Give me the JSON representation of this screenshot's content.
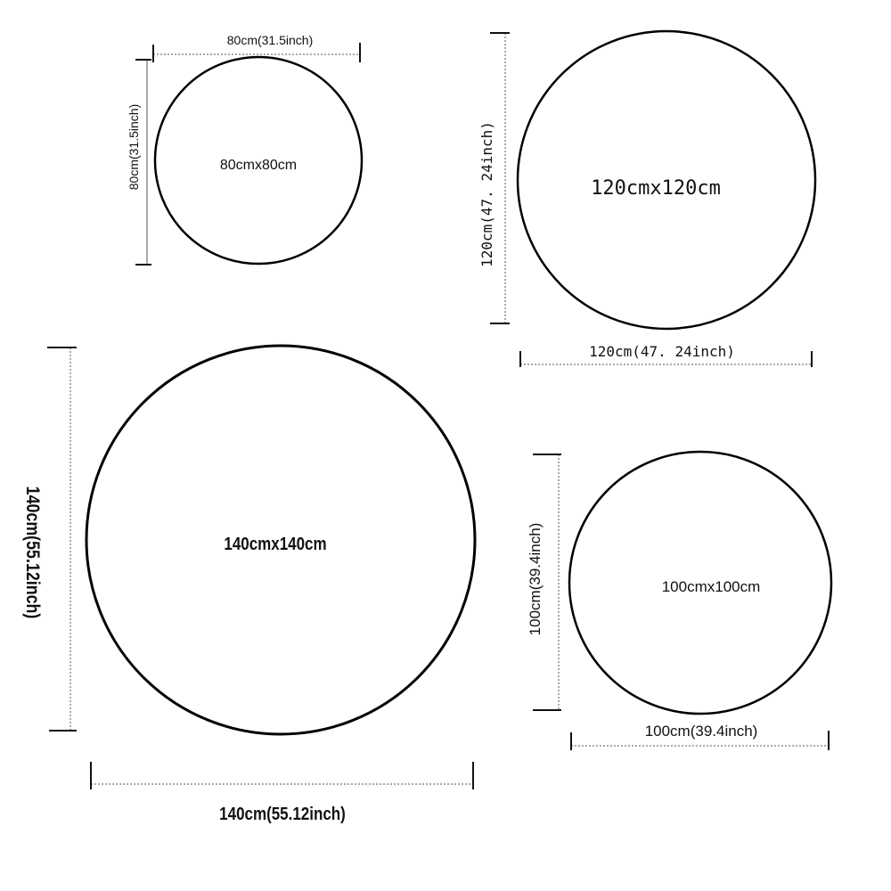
{
  "circles": [
    {
      "center_label": "80cmx80cm",
      "width_label": "80cm(31.5inch)",
      "height_label": "80cm(31.5inch)"
    },
    {
      "center_label": "120cmx120cm",
      "width_label": "120cm(47. 24inch)",
      "height_label": "120cm(47. 24inch)"
    },
    {
      "center_label": "140cmx140cm",
      "width_label": "140cm(55.12inch)",
      "height_label": "140cm(55.12inch)"
    },
    {
      "center_label": "100cmx100cm",
      "width_label": "100cm(39.4inch)",
      "height_label": "100cm(39.4inch)"
    }
  ],
  "colors": {
    "stroke": "#000000",
    "background": "#ffffff"
  }
}
